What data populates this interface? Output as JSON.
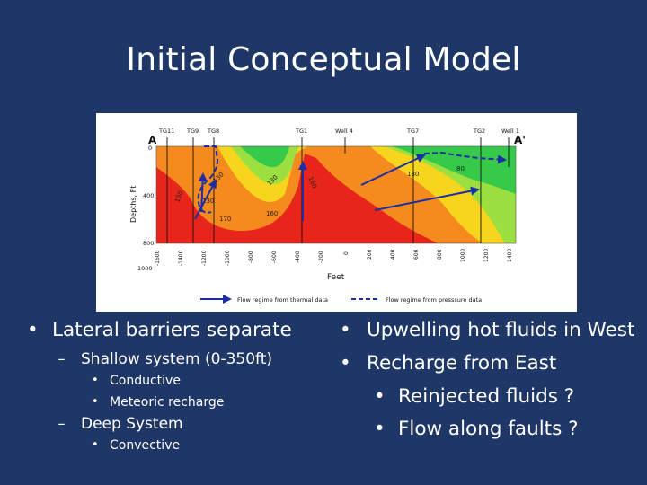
{
  "slide": {
    "title": "Initial Conceptual Model"
  },
  "figure": {
    "ends": {
      "left": "A",
      "right": "A'"
    },
    "wells": [
      "TG11",
      "TG9",
      "TG8",
      "TG1",
      "Well 4",
      "TG7",
      "TG2",
      "Well 1"
    ],
    "y_axis_label": "Depths, Ft",
    "y_ticks": [
      "0",
      "400",
      "800",
      "1000"
    ],
    "x_axis_label": "Feet",
    "x_ticks": [
      "-1600",
      "-1400",
      "-1200",
      "-1000",
      "-800",
      "-600",
      "-400",
      "-200",
      "0",
      "200",
      "400",
      "600",
      "800",
      "1000",
      "1200",
      "1400"
    ],
    "contour_labels": [
      "130",
      "130",
      "130",
      "160",
      "160",
      "170",
      "130",
      "130",
      "80"
    ],
    "legend": {
      "thermal": "Flow regime from thermal data",
      "pressure": "Flow regime from presssure data"
    },
    "colors": {
      "hot": "#e8251a",
      "warm": "#f58a1e",
      "mild": "#f7d51c",
      "cool": "#9be040",
      "cold": "#36c94a",
      "arrow": "#1c2ea6"
    }
  },
  "bullets_left": {
    "item1": "Lateral barriers separate",
    "sub1": "Shallow system (0-350ft)",
    "sub1_a": "Conductive",
    "sub1_b": "Meteoric recharge",
    "sub2": "Deep System",
    "sub2_a": "Convective"
  },
  "bullets_right": {
    "item1": "Upwelling hot fluids in West",
    "item2": "Recharge from East",
    "sub_a": "Reinjected fluids ?",
    "sub_b": "Flow along faults ?"
  }
}
